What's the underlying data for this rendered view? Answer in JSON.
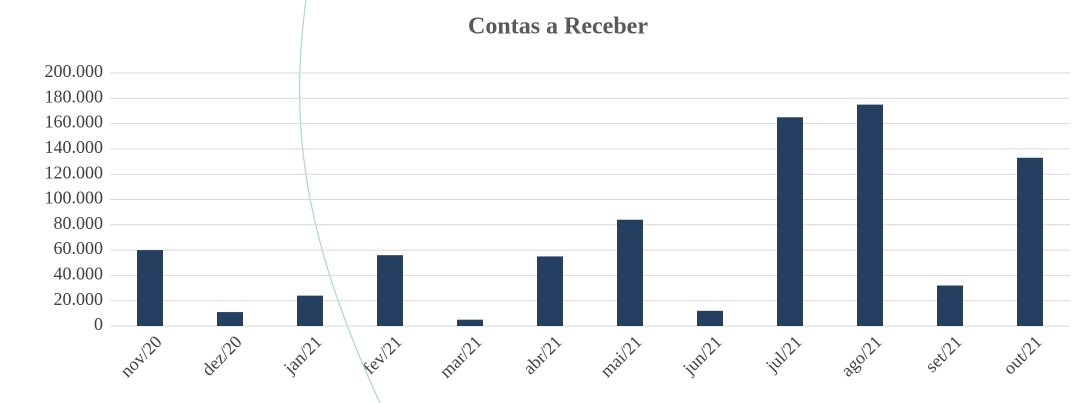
{
  "chart_data": {
    "type": "bar",
    "title": "Contas a Receber",
    "categories": [
      "nov/20",
      "dez/20",
      "jan/21",
      "fev/21",
      "mar/21",
      "abr/21",
      "mai/21",
      "jun/21",
      "jul/21",
      "ago/21",
      "set/21",
      "out/21"
    ],
    "values": [
      60000,
      11000,
      24000,
      56000,
      5000,
      55000,
      84000,
      12000,
      165000,
      175000,
      32000,
      133000
    ],
    "color": "#243f60",
    "ylim": [
      0,
      200000
    ],
    "yticks": [
      0,
      {
        "value": 20000,
        "label": "20.000"
      },
      {
        "value": 40000,
        "label": "40.000"
      },
      {
        "value": 60000,
        "label": "60.000"
      },
      {
        "value": 80000,
        "label": "80.000"
      },
      {
        "value": 100000,
        "label": "100.000"
      },
      {
        "value": 120000,
        "label": "120.000"
      },
      {
        "value": 140000,
        "label": "140.000"
      },
      {
        "value": 160000,
        "label": "160.000"
      },
      {
        "value": 180000,
        "label": "180.000"
      },
      {
        "value": 200000,
        "label": "200.000"
      }
    ],
    "grid": true
  }
}
